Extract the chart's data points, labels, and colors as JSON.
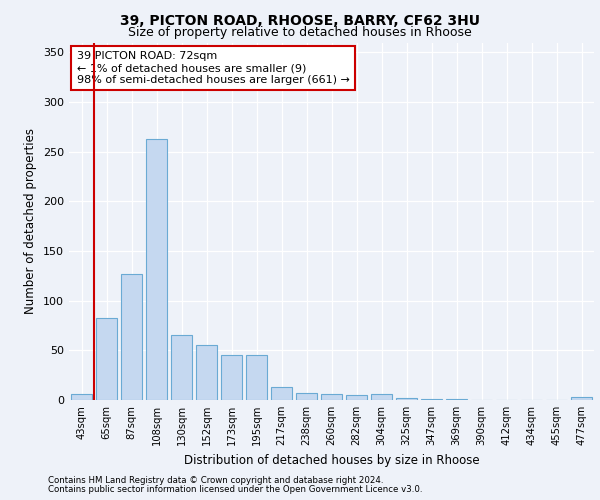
{
  "title1": "39, PICTON ROAD, RHOOSE, BARRY, CF62 3HU",
  "title2": "Size of property relative to detached houses in Rhoose",
  "xlabel": "Distribution of detached houses by size in Rhoose",
  "ylabel": "Number of detached properties",
  "categories": [
    "43sqm",
    "65sqm",
    "87sqm",
    "108sqm",
    "130sqm",
    "152sqm",
    "173sqm",
    "195sqm",
    "217sqm",
    "238sqm",
    "260sqm",
    "282sqm",
    "304sqm",
    "325sqm",
    "347sqm",
    "369sqm",
    "390sqm",
    "412sqm",
    "434sqm",
    "455sqm",
    "477sqm"
  ],
  "values": [
    6,
    83,
    127,
    263,
    65,
    55,
    45,
    45,
    13,
    7,
    6,
    5,
    6,
    2,
    1,
    1,
    0,
    0,
    0,
    0,
    3
  ],
  "bar_color": "#c5d8f0",
  "bar_edge_color": "#6aaad4",
  "vline_color": "#cc0000",
  "annotation_text": "39 PICTON ROAD: 72sqm\n← 1% of detached houses are smaller (9)\n98% of semi-detached houses are larger (661) →",
  "annotation_box_color": "#ffffff",
  "annotation_box_edge": "#cc0000",
  "ylim": [
    0,
    360
  ],
  "yticks": [
    0,
    50,
    100,
    150,
    200,
    250,
    300,
    350
  ],
  "footer1": "Contains HM Land Registry data © Crown copyright and database right 2024.",
  "footer2": "Contains public sector information licensed under the Open Government Licence v3.0.",
  "background_color": "#eef2f9",
  "plot_bg_color": "#eef2f9"
}
